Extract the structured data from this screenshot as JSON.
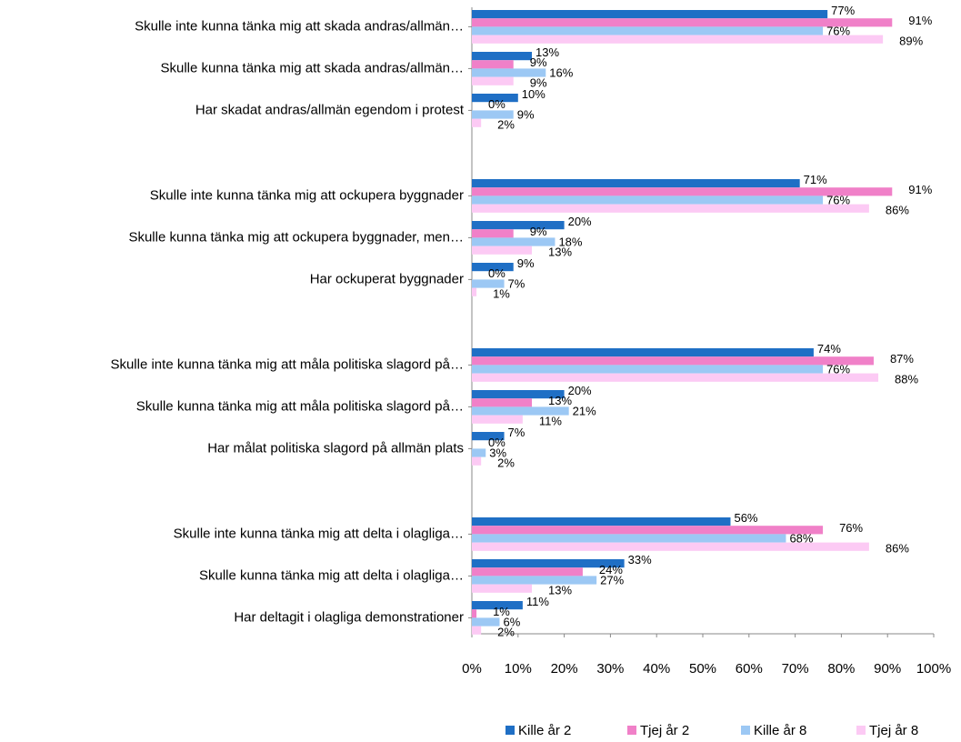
{
  "chart_data": {
    "type": "hbar",
    "categories": [
      "Skulle inte kunna tänka mig att  skada andras/allmän…",
      "Skulle kunna tänka mig att skada andras/allmän…",
      "Har skadat andras/allmän egendom i protest",
      "Skulle inte kunna tänka mig att ockupera byggnader",
      "Skulle kunna tänka mig att ockupera byggnader, men…",
      "Har ockuperat byggnader",
      "Skulle inte kunna tänka mig att måla politiska slagord på…",
      "Skulle kunna tänka mig  att måla politiska slagord på…",
      "Har målat politiska slagord på allmän plats",
      "Skulle inte kunna tänka mig att delta i olagliga…",
      "Skulle kunna tänka mig att delta i olagliga…",
      "Har deltagit i olagliga demonstrationer"
    ],
    "series": [
      {
        "name": "Kille år 2",
        "color": "#1f6fc5",
        "values": [
          77,
          13,
          10,
          71,
          20,
          9,
          74,
          20,
          7,
          56,
          33,
          11
        ],
        "value_labels": [
          "77%",
          "13%",
          "10%",
          "71%",
          "20%",
          "9%",
          "74%",
          "20%",
          "7%",
          "56%",
          "33%",
          "11%"
        ]
      },
      {
        "name": "Tjej år 2",
        "color": "#f080c8",
        "values": [
          91,
          9,
          0,
          91,
          9,
          0,
          87,
          13,
          0,
          76,
          24,
          1
        ],
        "value_labels": [
          "91%",
          "9%",
          "0%",
          "91%",
          "9%",
          "0%",
          "87%",
          "13%",
          "0%",
          "76%",
          "24%",
          "1%"
        ]
      },
      {
        "name": "Kille år 8",
        "color": "#9cc8f4",
        "values": [
          76,
          16,
          9,
          76,
          18,
          7,
          76,
          21,
          3,
          68,
          27,
          6
        ],
        "value_labels": [
          "76%",
          "16%",
          "9%",
          "76%",
          "18%",
          "7%",
          "76%",
          "21%",
          "3%",
          "68%",
          "27%",
          "6%"
        ]
      },
      {
        "name": "Tjej år 8",
        "color": "#fccaf4",
        "values": [
          89,
          9,
          2,
          86,
          13,
          1,
          88,
          11,
          2,
          86,
          13,
          2
        ],
        "value_labels": [
          "89%",
          "9%",
          "2%",
          "86%",
          "13%",
          "1%",
          "88%",
          "11%",
          "2%",
          "86%",
          "13%",
          "2%"
        ]
      }
    ],
    "xlim": [
      0,
      100
    ],
    "xticks": [
      {
        "value": 0,
        "label": "0%"
      },
      {
        "value": 10,
        "label": "10%"
      },
      {
        "value": 20,
        "label": "20%"
      },
      {
        "value": 30,
        "label": "30%"
      },
      {
        "value": 40,
        "label": "40%"
      },
      {
        "value": 50,
        "label": "50%"
      },
      {
        "value": 60,
        "label": "60%"
      },
      {
        "value": 70,
        "label": "70%"
      },
      {
        "value": 80,
        "label": "80%"
      },
      {
        "value": 90,
        "label": "90%"
      },
      {
        "value": 100,
        "label": "100%"
      }
    ],
    "legend": "bottom"
  }
}
